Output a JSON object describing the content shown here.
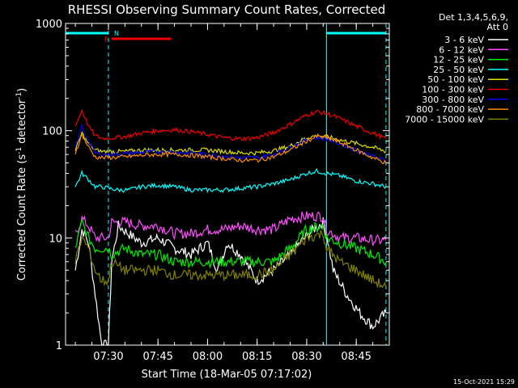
{
  "chart_data": {
    "type": "line",
    "title": "RHESSI Observing Summary Count Rates, Corrected",
    "xlabel": "Start Time (18-Mar-05 07:17:02)",
    "ylabel": "Corrected Count Rate (s⁻¹ detector⁻¹)",
    "ylabel_parts": [
      "Corrected Count Rate (s",
      "-1",
      " detector",
      "-1",
      ")"
    ],
    "yscale": "log",
    "ylim": [
      1,
      1000
    ],
    "xlim": [
      "07:17:02",
      "08:55:00"
    ],
    "x_ticks": [
      "07:30",
      "07:45",
      "08:00",
      "08:15",
      "08:30",
      "08:45"
    ],
    "y_ticks": [
      "1",
      "10",
      "100",
      "1000"
    ],
    "legend_header": [
      "Det 1,3,4,5,6,9,",
      "Att 0"
    ],
    "legend_position": "right",
    "timestamp": "15-Oct-2021 15:29",
    "annotations": {
      "flag_letters": [
        "F",
        "N"
      ],
      "night_intervals": [
        [
          "07:17:02",
          "07:30:00"
        ],
        [
          "08:36:00",
          "08:54:00"
        ]
      ],
      "flare_interval": [
        "07:31:00",
        "07:49:00"
      ],
      "boundary_times": [
        "07:30:00",
        "08:36:00",
        "08:54:00"
      ]
    },
    "series": [
      {
        "name": "3 - 6 keV",
        "color": "#ffffff",
        "x": [
          "07:20",
          "07:22",
          "07:24",
          "07:26",
          "07:28",
          "07:30",
          "07:31",
          "07:33",
          "07:36",
          "07:40",
          "07:45",
          "07:50",
          "07:55",
          "08:00",
          "08:03",
          "08:06",
          "08:10",
          "08:15",
          "08:20",
          "08:25",
          "08:28",
          "08:32",
          "08:35",
          "08:36",
          "08:38",
          "08:42",
          "08:46",
          "08:50",
          "08:54"
        ],
        "y": [
          5,
          12,
          9,
          3,
          1,
          1,
          6,
          13,
          11,
          9,
          10,
          8,
          7,
          9,
          5,
          9,
          7,
          4,
          5,
          7,
          9,
          12,
          14,
          11,
          5,
          3,
          2,
          1.5,
          2
        ]
      },
      {
        "name": "6 - 12 keV",
        "color": "#ff4dff",
        "x": [
          "07:20",
          "07:22",
          "07:24",
          "07:26",
          "07:28",
          "07:30",
          "07:31",
          "07:35",
          "07:40",
          "07:45",
          "07:50",
          "07:55",
          "08:00",
          "08:05",
          "08:10",
          "08:15",
          "08:20",
          "08:25",
          "08:30",
          "08:35",
          "08:36",
          "08:40",
          "08:45",
          "08:50",
          "08:54"
        ],
        "y": [
          11,
          15,
          13,
          10,
          10,
          10,
          14,
          14,
          13,
          13,
          11,
          11,
          12,
          12,
          13,
          12,
          12,
          15,
          16,
          16,
          12,
          10,
          10,
          9.5,
          9.5
        ]
      },
      {
        "name": "12 - 25 keV",
        "color": "#00ee00",
        "x": [
          "07:20",
          "07:22",
          "07:24",
          "07:26",
          "07:28",
          "07:30",
          "07:31",
          "07:35",
          "07:40",
          "07:45",
          "07:50",
          "07:55",
          "08:00",
          "08:05",
          "08:10",
          "08:15",
          "08:20",
          "08:25",
          "08:30",
          "08:35",
          "08:36",
          "08:40",
          "08:45",
          "08:50",
          "08:54"
        ],
        "y": [
          8,
          14,
          10,
          8,
          8,
          8,
          7,
          8,
          7,
          7,
          6,
          6,
          6,
          6,
          6,
          6,
          6,
          8,
          12,
          13,
          10,
          9,
          8,
          7,
          6
        ]
      },
      {
        "name": "25 - 50 keV",
        "color": "#00ffff",
        "x": [
          "07:20",
          "07:22",
          "07:24",
          "07:26",
          "07:28",
          "07:30",
          "07:33",
          "07:36",
          "07:40",
          "07:45",
          "07:50",
          "07:55",
          "08:00",
          "08:05",
          "08:10",
          "08:15",
          "08:20",
          "08:25",
          "08:30",
          "08:33",
          "08:36",
          "08:40",
          "08:45",
          "08:50",
          "08:54"
        ],
        "y": [
          30,
          40,
          35,
          30,
          30,
          29,
          28,
          28,
          30,
          31,
          30,
          28,
          28,
          28,
          29,
          30,
          32,
          35,
          40,
          42,
          40,
          38,
          34,
          32,
          30
        ]
      },
      {
        "name": "50 - 100 keV",
        "color": "#dddd00",
        "x": [
          "07:20",
          "07:22",
          "07:24",
          "07:26",
          "07:28",
          "07:30",
          "07:35",
          "07:40",
          "07:45",
          "07:50",
          "07:55",
          "08:00",
          "08:05",
          "08:10",
          "08:15",
          "08:20",
          "08:25",
          "08:30",
          "08:33",
          "08:36",
          "08:40",
          "08:45",
          "08:50",
          "08:54"
        ],
        "y": [
          65,
          95,
          75,
          66,
          64,
          64,
          64,
          66,
          66,
          66,
          66,
          66,
          64,
          62,
          62,
          65,
          72,
          86,
          90,
          88,
          82,
          76,
          70,
          64
        ]
      },
      {
        "name": "100 - 300 keV",
        "color": "#ee0000",
        "x": [
          "07:20",
          "07:22",
          "07:24",
          "07:26",
          "07:28",
          "07:30",
          "07:35",
          "07:40",
          "07:45",
          "07:50",
          "07:55",
          "08:00",
          "08:05",
          "08:10",
          "08:15",
          "08:20",
          "08:25",
          "08:30",
          "08:33",
          "08:36",
          "08:40",
          "08:45",
          "08:50",
          "08:54"
        ],
        "y": [
          110,
          155,
          110,
          90,
          85,
          85,
          88,
          95,
          100,
          102,
          98,
          92,
          86,
          84,
          86,
          96,
          115,
          140,
          150,
          145,
          130,
          110,
          95,
          84
        ]
      },
      {
        "name": "300 - 800 keV",
        "color": "#0000ff",
        "x": [
          "07:20",
          "07:22",
          "07:24",
          "07:26",
          "07:28",
          "07:30",
          "07:35",
          "07:40",
          "07:45",
          "07:50",
          "07:55",
          "08:00",
          "08:05",
          "08:10",
          "08:15",
          "08:20",
          "08:25",
          "08:30",
          "08:33",
          "08:36",
          "08:40",
          "08:45",
          "08:50",
          "08:54"
        ],
        "y": [
          70,
          110,
          80,
          62,
          60,
          60,
          61,
          63,
          64,
          63,
          62,
          60,
          58,
          56,
          56,
          60,
          70,
          82,
          86,
          84,
          76,
          66,
          58,
          52
        ]
      },
      {
        "name": "800 - 7000 keV",
        "color": "#ff8c00",
        "x": [
          "07:20",
          "07:22",
          "07:24",
          "07:26",
          "07:28",
          "07:30",
          "07:35",
          "07:40",
          "07:45",
          "07:50",
          "07:55",
          "08:00",
          "08:05",
          "08:10",
          "08:15",
          "08:20",
          "08:25",
          "08:30",
          "08:33",
          "08:36",
          "08:40",
          "08:45",
          "08:50",
          "08:54"
        ],
        "y": [
          62,
          92,
          70,
          57,
          56,
          56,
          57,
          59,
          60,
          60,
          59,
          57,
          55,
          53,
          53,
          57,
          66,
          80,
          88,
          86,
          78,
          66,
          56,
          50
        ]
      },
      {
        "name": "7000 - 15000 keV",
        "color": "#808000",
        "x": [
          "07:20",
          "07:22",
          "07:24",
          "07:26",
          "07:28",
          "07:30",
          "07:31",
          "07:35",
          "07:40",
          "07:45",
          "07:50",
          "07:55",
          "08:00",
          "08:05",
          "08:10",
          "08:15",
          "08:20",
          "08:25",
          "08:30",
          "08:35",
          "08:36",
          "08:40",
          "08:45",
          "08:50",
          "08:54"
        ],
        "y": [
          6,
          10,
          8,
          5,
          4,
          4,
          6,
          5,
          5,
          5,
          4.5,
          4.5,
          4.5,
          4.5,
          4.5,
          4.5,
          5,
          7,
          10,
          11,
          8,
          6,
          5,
          4,
          3.5
        ]
      }
    ]
  }
}
